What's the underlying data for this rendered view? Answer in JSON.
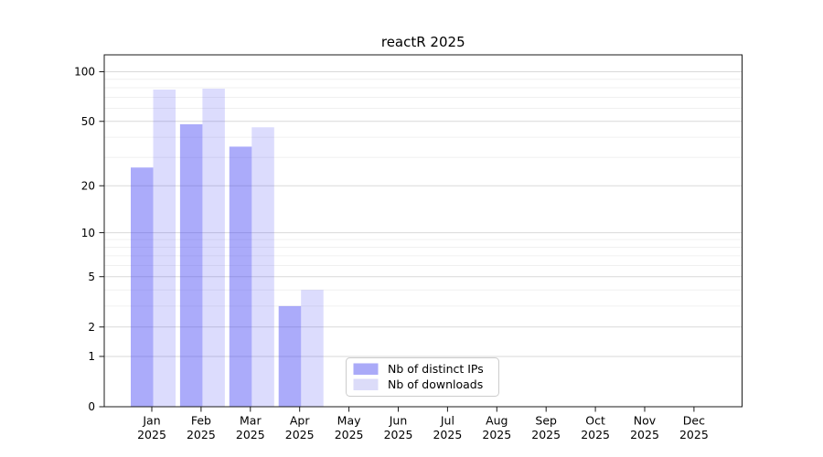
{
  "chart_data": {
    "type": "bar",
    "title": "reactR 2025",
    "categories": [
      "Jan",
      "Feb",
      "Mar",
      "Apr",
      "May",
      "Jun",
      "Jul",
      "Aug",
      "Sep",
      "Oct",
      "Nov",
      "Dec"
    ],
    "x_tick_second_line": "2025",
    "series": [
      {
        "name": "Nb of distinct IPs",
        "legend_color": "#aaaaf8",
        "bar_fill": "rgba(68,68,245,0.45)",
        "values": [
          26,
          48,
          35,
          3,
          0,
          0,
          0,
          0,
          0,
          0,
          0,
          0
        ]
      },
      {
        "name": "Nb of downloads",
        "legend_color": "#dcdcf9",
        "bar_fill": "rgba(68,68,245,0.19)",
        "values": [
          78,
          79,
          46,
          4,
          0,
          0,
          0,
          0,
          0,
          0,
          0,
          0
        ]
      }
    ],
    "y_scale": "log10(1+x)",
    "y_ticks": [
      0,
      1,
      2,
      5,
      10,
      20,
      50,
      100
    ],
    "y_minor_ticks": [
      3,
      4,
      6,
      7,
      8,
      9,
      30,
      40,
      60,
      70,
      80,
      90
    ],
    "ylim": [
      0,
      124
    ],
    "xlabel": "",
    "ylabel": "",
    "grid": true,
    "legend_position": "inside lower-center-left"
  },
  "colors": {
    "major_grid": "#d9d9d9",
    "minor_grid": "#f0f0f0",
    "spine": "#1a1a1a",
    "tick": "#1a1a1a",
    "text": "#000000",
    "legend_border": "#cccccc",
    "legend_bg": "#ffffff",
    "background": "#ffffff"
  }
}
